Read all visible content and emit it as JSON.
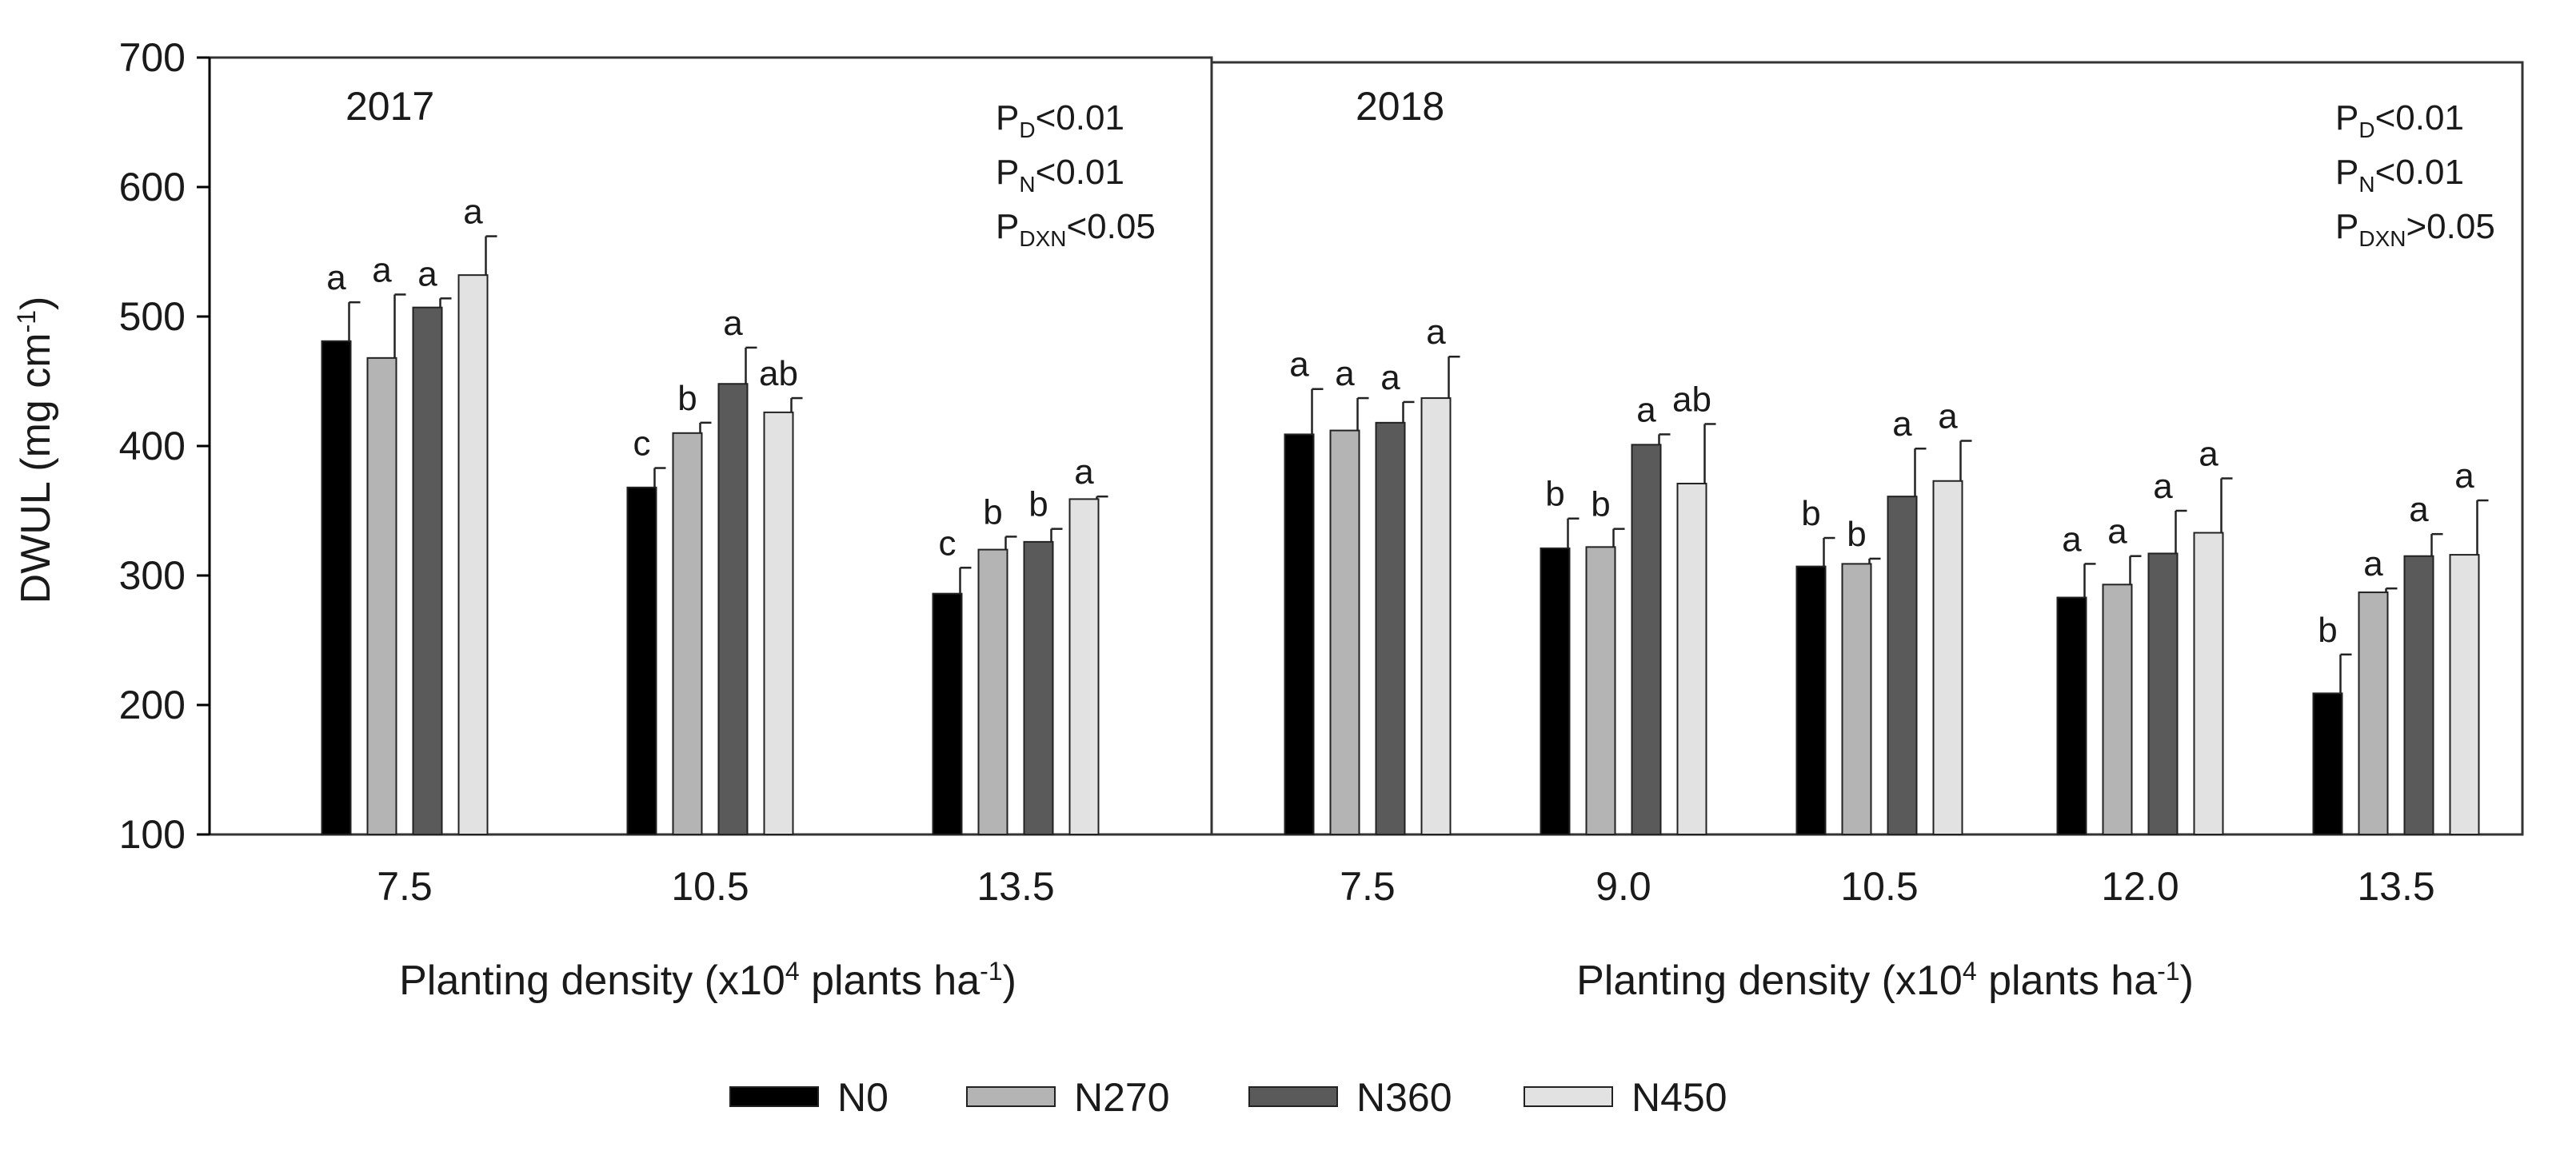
{
  "chart_data": {
    "type": "bar",
    "ylabel": "DWUL (mg cm-1)",
    "ylabel_main": "DWUL (mg cm",
    "ylabel_sup": "-1",
    "ylabel_end": ")",
    "ylim": [
      100,
      700
    ],
    "yticks": [
      100,
      200,
      300,
      400,
      500,
      600,
      700
    ],
    "xlabel_pre": "Planting density (x10",
    "xlabel_sup1": "4",
    "xlabel_mid": " plants ha",
    "xlabel_sup2": "-1",
    "xlabel_end": ")",
    "series_names": [
      "N0",
      "N270",
      "N360",
      "N450"
    ],
    "colors": [
      "#000000",
      "#b4b4b4",
      "#5a5a5a",
      "#e2e2e2"
    ],
    "panels": [
      {
        "year": "2017",
        "categories": [
          "7.5",
          "10.5",
          "13.5"
        ],
        "series": [
          {
            "name": "N0",
            "values": [
              481,
              368,
              286
            ],
            "errors": [
              30,
              15,
              20
            ],
            "letters": [
              "a",
              "c",
              "c"
            ]
          },
          {
            "name": "N270",
            "values": [
              468,
              410,
              320
            ],
            "errors": [
              49,
              8,
              10
            ],
            "letters": [
              "a",
              "b",
              "b"
            ]
          },
          {
            "name": "N360",
            "values": [
              507,
              448,
              326
            ],
            "errors": [
              7,
              28,
              10
            ],
            "letters": [
              "a",
              "a",
              "b"
            ]
          },
          {
            "name": "N450",
            "values": [
              532,
              426,
              359
            ],
            "errors": [
              30,
              11,
              2
            ],
            "letters": [
              "a",
              "ab",
              "a"
            ]
          }
        ],
        "stats": [
          {
            "p": "P",
            "sub": "D",
            "rest": "<0.01"
          },
          {
            "p": "P",
            "sub": "N",
            "rest": "<0.01"
          },
          {
            "p": "P",
            "sub": "DXN",
            "rest": "<0.05"
          }
        ]
      },
      {
        "year": "2018",
        "categories": [
          "7.5",
          "9.0",
          "10.5",
          "12.0",
          "13.5"
        ],
        "series": [
          {
            "name": "N0",
            "values": [
              409,
              321,
              307,
              283,
              209
            ],
            "errors": [
              35,
              23,
              22,
              26,
              30
            ],
            "letters": [
              "a",
              "b",
              "b",
              "a",
              "b"
            ]
          },
          {
            "name": "N270",
            "values": [
              412,
              322,
              309,
              293,
              287
            ],
            "errors": [
              25,
              14,
              4,
              22,
              3
            ],
            "letters": [
              "a",
              "b",
              "b",
              "a",
              "a"
            ]
          },
          {
            "name": "N360",
            "values": [
              418,
              401,
              361,
              317,
              315
            ],
            "errors": [
              16,
              8,
              37,
              33,
              17
            ],
            "letters": [
              "a",
              "a",
              "a",
              "a",
              "a"
            ]
          },
          {
            "name": "N450",
            "values": [
              437,
              371,
              373,
              333,
              316
            ],
            "errors": [
              32,
              46,
              31,
              42,
              42
            ],
            "letters": [
              "a",
              "ab",
              "a",
              "a",
              "a"
            ]
          }
        ],
        "stats": [
          {
            "p": "P",
            "sub": "D",
            "rest": "<0.01"
          },
          {
            "p": "P",
            "sub": "N",
            "rest": "<0.01"
          },
          {
            "p": "P",
            "sub": "DXN",
            "rest": ">0.05"
          }
        ]
      }
    ],
    "legend": {
      "position": "bottom-center",
      "labels": [
        "N0",
        "N270",
        "N360",
        "N450"
      ]
    }
  }
}
